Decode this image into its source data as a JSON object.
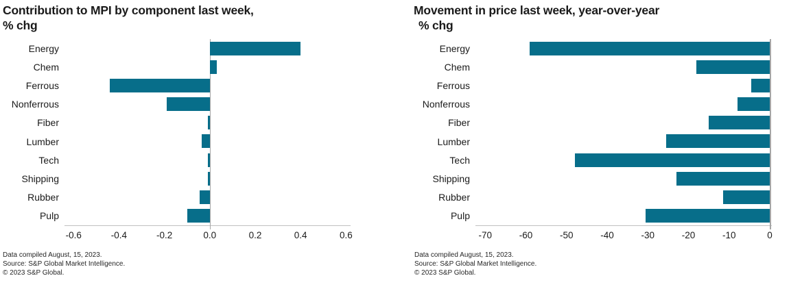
{
  "chart_data": [
    {
      "type": "bar",
      "orientation": "horizontal",
      "title_line1": "Contribution to MPI by component last week,",
      "title_line2": "% chg",
      "categories": [
        "Energy",
        "Chem",
        "Ferrous",
        "Nonferrous",
        "Fiber",
        "Lumber",
        "Tech",
        "Shipping",
        "Rubber",
        "Pulp"
      ],
      "values": [
        0.4,
        0.03,
        -0.44,
        -0.19,
        -0.01,
        -0.035,
        -0.01,
        -0.01,
        -0.045,
        -0.1
      ],
      "xlim": [
        -0.64,
        0.62
      ],
      "ticks": [
        -0.6,
        -0.4,
        -0.2,
        0,
        0.2,
        0.4,
        0.6
      ],
      "tick_labels": [
        "-0.6",
        "-0.4",
        "-0.2",
        "0.0",
        "0.2",
        "0.4",
        "0.6"
      ],
      "bar_color": "#076e8a",
      "grid": "zero-line-only",
      "legend": "none",
      "footer_lines": [
        "Data compiled August, 15, 2023.",
        "Source: S&P Global Market Intelligence.",
        "© 2023 S&P Global."
      ]
    },
    {
      "type": "bar",
      "orientation": "horizontal",
      "title_line1": "Movement in price last week, year-over-year",
      "title_line2": "% chg",
      "categories": [
        "Energy",
        "Chem",
        "Ferrous",
        "Nonferrous",
        "Fiber",
        "Lumber",
        "Tech",
        "Shipping",
        "Rubber",
        "Pulp"
      ],
      "values": [
        -59,
        -18,
        -4.5,
        -8,
        -15,
        -25.5,
        -48,
        -23,
        -11.5,
        -30.5
      ],
      "xlim": [
        -72.4,
        0.5
      ],
      "ticks": [
        -70,
        -60,
        -50,
        -40,
        -30,
        -20,
        -10,
        0
      ],
      "tick_labels": [
        "-70",
        "-60",
        "-50",
        "-40",
        "-30",
        "-20",
        "-10",
        "0"
      ],
      "bar_color": "#076e8a",
      "grid": "zero-line-only",
      "legend": "none",
      "footer_lines": [
        "Data compiled August, 15, 2023.",
        "Source: S&P Global Market Intelligence.",
        "© 2023 S&P Global."
      ]
    }
  ]
}
